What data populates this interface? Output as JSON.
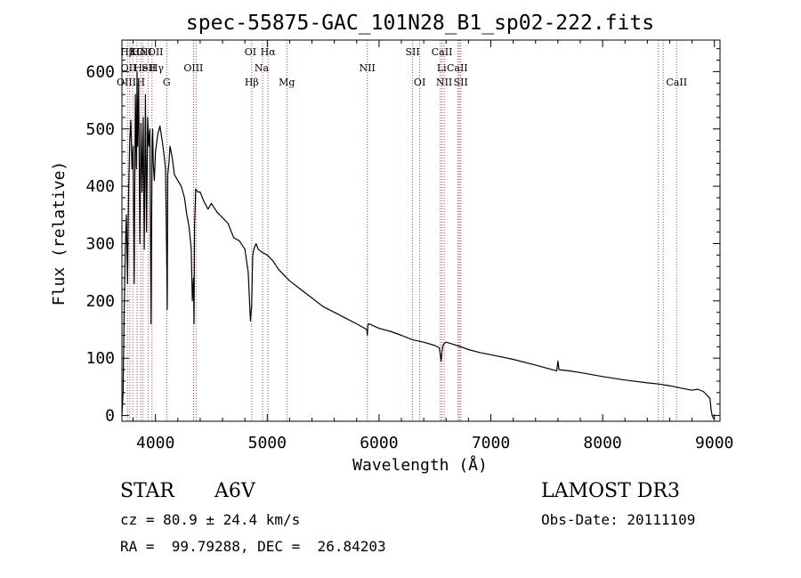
{
  "chart_data": {
    "type": "line",
    "title": "spec-55875-GAC_101N28_B1_sp02-222.fits",
    "xlabel": "Wavelength (Å)",
    "ylabel": "Flux (relative)",
    "xlim": [
      3700,
      9050
    ],
    "ylim": [
      -10,
      655
    ],
    "xticks": [
      4000,
      5000,
      6000,
      7000,
      8000,
      9000
    ],
    "yticks": [
      0,
      100,
      200,
      300,
      400,
      500,
      600
    ],
    "xtick_labels": [
      "4000",
      "5000",
      "6000",
      "7000",
      "8000",
      "9000"
    ],
    "ytick_labels": [
      "0",
      "100",
      "200",
      "300",
      "400",
      "500",
      "600"
    ],
    "series": [
      {
        "name": "spectrum",
        "x": [
          3700,
          3710,
          3720,
          3730,
          3740,
          3750,
          3760,
          3770,
          3780,
          3790,
          3800,
          3810,
          3820,
          3830,
          3835,
          3840,
          3850,
          3860,
          3870,
          3880,
          3890,
          3900,
          3910,
          3920,
          3930,
          3940,
          3950,
          3960,
          3970,
          3975,
          3980,
          3990,
          4000,
          4020,
          4040,
          4060,
          4080,
          4090,
          4100,
          4105,
          4110,
          4120,
          4130,
          4150,
          4170,
          4200,
          4230,
          4260,
          4280,
          4300,
          4320,
          4330,
          4340,
          4345,
          4350,
          4360,
          4380,
          4400,
          4430,
          4470,
          4500,
          4550,
          4600,
          4650,
          4700,
          4750,
          4800,
          4830,
          4850,
          4855,
          4861,
          4866,
          4870,
          4880,
          4900,
          4920,
          4950,
          5000,
          5050,
          5100,
          5150,
          5200,
          5300,
          5400,
          5500,
          5600,
          5700,
          5800,
          5890,
          5895,
          5900,
          5910,
          6000,
          6100,
          6200,
          6300,
          6400,
          6500,
          6540,
          6555,
          6563,
          6570,
          6580,
          6600,
          6650,
          6700,
          6800,
          6900,
          7000,
          7200,
          7400,
          7590,
          7600,
          7610,
          7700,
          7800,
          8000,
          8200,
          8400,
          8500,
          8600,
          8700,
          8800,
          8850,
          8900,
          8960,
          8970,
          8980,
          8990,
          9000
        ],
        "y": [
          0,
          40,
          180,
          290,
          350,
          230,
          390,
          480,
          515,
          430,
          470,
          230,
          560,
          430,
          600,
          470,
          580,
          300,
          510,
          390,
          520,
          290,
          560,
          320,
          520,
          470,
          500,
          160,
          480,
          500,
          440,
          410,
          460,
          490,
          505,
          480,
          450,
          430,
          290,
          185,
          420,
          440,
          470,
          450,
          420,
          410,
          400,
          380,
          350,
          330,
          290,
          200,
          240,
          160,
          330,
          395,
          390,
          390,
          375,
          360,
          370,
          355,
          345,
          335,
          310,
          305,
          290,
          250,
          165,
          180,
          190,
          250,
          280,
          290,
          300,
          290,
          285,
          280,
          270,
          255,
          245,
          235,
          220,
          205,
          190,
          180,
          170,
          160,
          150,
          140,
          158,
          160,
          152,
          147,
          140,
          132,
          128,
          122,
          118,
          95,
          112,
          120,
          125,
          128,
          125,
          122,
          115,
          110,
          106,
          98,
          88,
          78,
          95,
          80,
          78,
          75,
          68,
          62,
          57,
          55,
          52,
          48,
          44,
          46,
          42,
          30,
          10,
          0,
          -5,
          -5
        ]
      }
    ],
    "lines_top": [
      "Hβ",
      "K",
      "Hδ",
      "OII",
      "OII",
      "OI",
      "Hα",
      "SII",
      "CaII"
    ],
    "lines_mid": [
      "OII",
      "He",
      "SII",
      "Hγ",
      "OIII",
      "Na",
      "NII",
      "Li",
      "CaII"
    ],
    "lines_bot": [
      "OIII",
      "H",
      "G",
      "Hβ",
      "Mg",
      "OI",
      "NII",
      "SII",
      "CaII"
    ]
  },
  "info": {
    "object_class": "STAR",
    "subclass": "A6V",
    "survey": "LAMOST DR3",
    "cz": "cz = 80.9 ± 24.4 km/s",
    "obs_date": "Obs-Date: 20111109",
    "radec": "RA =  99.79288, DEC =  26.84203"
  },
  "colors": {
    "axis": "#000000",
    "spectrum": "#000000",
    "lines": "#c04040"
  }
}
